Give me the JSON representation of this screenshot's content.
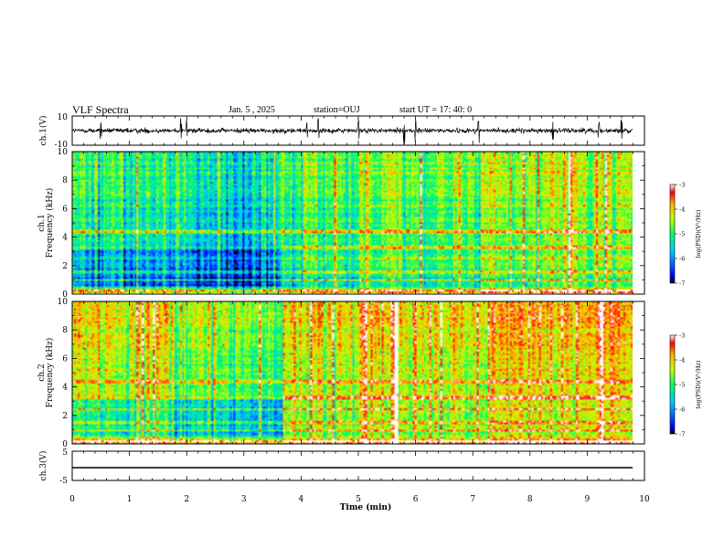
{
  "header": {
    "title": "VLF Spectra",
    "date": "Jan. 5 , 2025",
    "station": "station=OUJ",
    "start": "start  UT =  17: 40: 0"
  },
  "axes": {
    "ch1_label": "ch.1(V)",
    "ch1_ticks": [
      "10",
      "-10"
    ],
    "ch3_label": "ch.3(V)",
    "ch3_ticks": [
      "5",
      "-5"
    ],
    "spec_ylabel_line1": "ch.1",
    "spec_ylabel_line1_b": "ch.2",
    "spec_ylabel_line2": "Frequency (kHz)",
    "freq_ticks": [
      "0",
      "2",
      "4",
      "6",
      "8",
      "10"
    ],
    "time_ticks": [
      "0",
      "1",
      "2",
      "3",
      "4",
      "5",
      "6",
      "7",
      "8",
      "9",
      "10"
    ],
    "xlabel": "Time (min)",
    "colorbar_label": "log(PSD)(V²/Hz)",
    "colorbar_ticks": [
      "-3",
      "-4",
      "-5",
      "-6",
      "-7"
    ]
  },
  "colors": {
    "colormap": [
      "#000000",
      "#0000ff",
      "#00c8ff",
      "#00ff64",
      "#c8ff00",
      "#ffb400",
      "#ff0000",
      "#ffffff"
    ],
    "trace": "#000000"
  },
  "chart_data": [
    {
      "type": "line",
      "name": "ch.1 waveform",
      "ylabel": "ch.1(V)",
      "ylim": [
        -10,
        10
      ],
      "xlim": [
        0,
        10
      ],
      "baseline": 0,
      "amplitude_typ": 1.5,
      "spikes_min": [
        0.5,
        1.9,
        2.0,
        4.1,
        4.3,
        5.0,
        5.8,
        6.0,
        7.1,
        8.4,
        9.2,
        9.6
      ]
    },
    {
      "type": "heatmap",
      "name": "ch.1 spectrogram",
      "xlabel": "Time (min)",
      "ylabel": "Frequency (kHz)",
      "xlim": [
        0,
        10
      ],
      "ylim": [
        0,
        10
      ],
      "clim": [
        -7,
        -3
      ],
      "time_breaks_min": [
        2.0,
        3.75,
        5.1,
        5.85,
        7.4,
        8.3
      ],
      "segment_mean_logpsd": [
        -5.2,
        -5.6,
        -5.1,
        -4.6,
        -4.9,
        -4.7,
        -4.5
      ],
      "bands_khz": [
        0.3,
        1.0,
        1.6,
        2.5,
        3.3,
        4.4
      ]
    },
    {
      "type": "heatmap",
      "name": "ch.2 spectrogram",
      "xlabel": "Time (min)",
      "ylabel": "Frequency (kHz)",
      "xlim": [
        0,
        10
      ],
      "ylim": [
        0,
        10
      ],
      "clim": [
        -7,
        -3
      ],
      "time_breaks_min": [
        2.0,
        3.75,
        5.1,
        5.85,
        7.4,
        8.3
      ],
      "segment_mean_logpsd": [
        -4.5,
        -4.9,
        -4.4,
        -3.9,
        -4.3,
        -4.1,
        -4.0
      ],
      "bands_khz": [
        0.3,
        1.0,
        1.6,
        2.5,
        3.3,
        4.4
      ]
    },
    {
      "type": "line",
      "name": "ch.3 waveform",
      "ylabel": "ch.3(V)",
      "ylim": [
        -5,
        5
      ],
      "xlim": [
        0,
        10
      ],
      "baseline": -1.2
    }
  ]
}
